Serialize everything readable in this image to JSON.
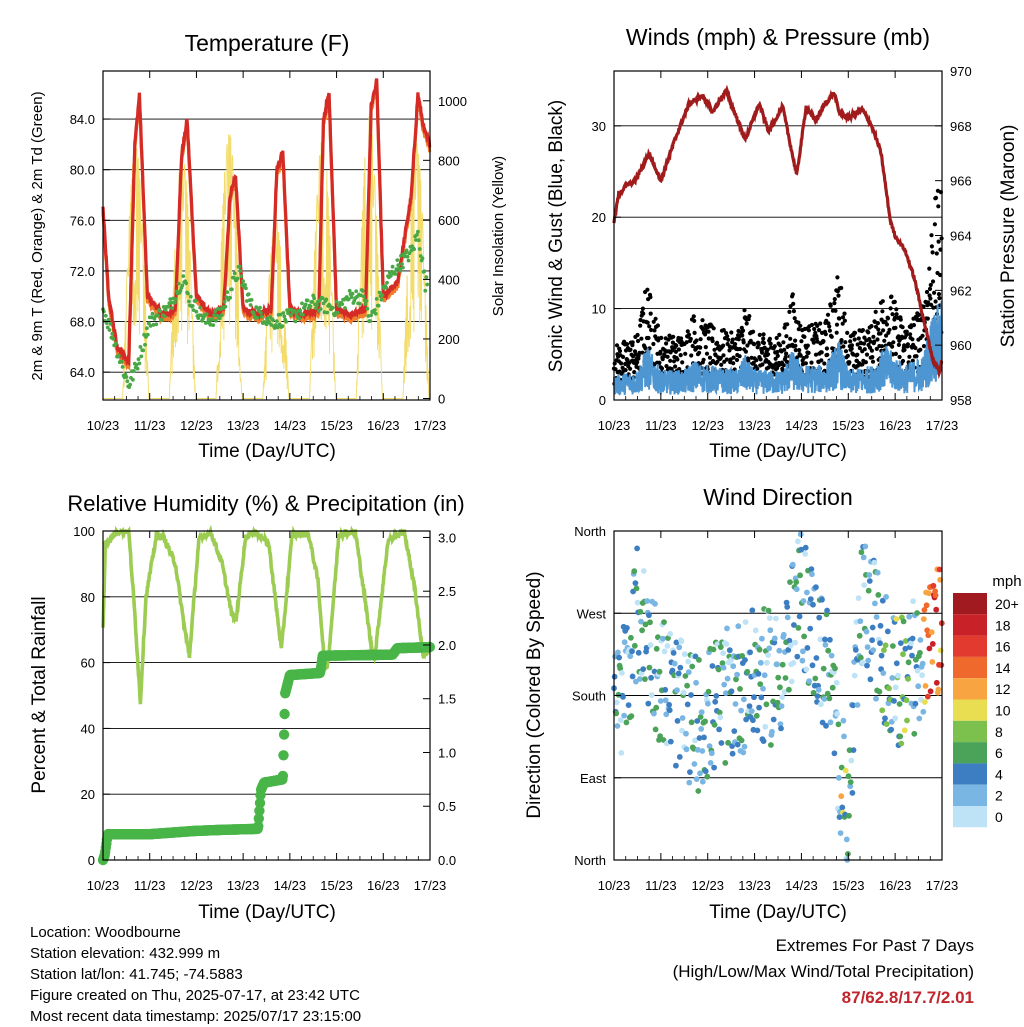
{
  "panels": {
    "temperature": {
      "title": "Temperature (F)",
      "ylabel_left": "2m & 9m T (Red, Orange) & 2m Td (Green)",
      "ylabel_right": "Solar Insolation (Yellow)",
      "xlabel": "Time (Day/UTC)"
    },
    "winds": {
      "title": "Winds (mph) & Pressure (mb)",
      "ylabel_left": "Sonic Wind & Gust (Blue, Black)",
      "ylabel_right": "Station Pressure (Maroon)",
      "xlabel": "Time (Day/UTC)"
    },
    "humidity": {
      "title": "Relative Humidity (%) & Precipitation (in)",
      "ylabel_left": "Percent & Total Rainfall",
      "xlabel": "Time (Day/UTC)"
    },
    "direction": {
      "title": "Wind Direction",
      "ylabel_left": "Direction (Colored By Speed)",
      "xlabel": "Time (Day/UTC)",
      "legend_title": "mph",
      "legend_labels": [
        "20+",
        "18",
        "16",
        "14",
        "12",
        "10",
        "8",
        "6",
        "4",
        "2",
        "0"
      ],
      "legend_colors": [
        "#a11a1f",
        "#c92128",
        "#e23a2e",
        "#f0692c",
        "#f8a541",
        "#e9de52",
        "#7cc04d",
        "#4ba35a",
        "#3d7ec2",
        "#7ab6e3",
        "#bfe3f6"
      ]
    }
  },
  "info": {
    "location": "Location: Woodbourne",
    "elevation": "Station elevation: 432.999 m",
    "latlon": "Station lat/lon: 41.745; -74.5883",
    "created": "Figure created on Thu, 2025-07-17, at 23:42 UTC",
    "recent": "Most recent data timestamp: 2025/07/17 23:15:00"
  },
  "extremes": {
    "line1": "Extremes For Past 7 Days",
    "line2": "(High/Low/Max Wind/Total Precipitation)",
    "values": "87/62.8/17.7/2.01"
  },
  "chart_data": [
    {
      "type": "line",
      "title": "Temperature (F)",
      "x_ticks": [
        "10/23",
        "11/23",
        "12/23",
        "13/23",
        "14/23",
        "15/23",
        "16/23",
        "17/23"
      ],
      "y_ticks": [
        "64.0",
        "68.0",
        "72.0",
        "76.0",
        "80.0",
        "84.0"
      ],
      "y2_ticks": [
        "0",
        "200",
        "400",
        "600",
        "800",
        "1000"
      ],
      "ylim": [
        61.8,
        87.8
      ],
      "y2lim": [
        -5,
        1100
      ],
      "series": [
        {
          "name": "2m T",
          "color": "#d42b27",
          "x": [
            0,
            0.12,
            0.3,
            0.55,
            0.68,
            0.78,
            0.95,
            1.3,
            1.55,
            1.68,
            1.8,
            2.0,
            2.3,
            2.58,
            2.72,
            2.84,
            3.0,
            3.3,
            3.6,
            3.72,
            3.85,
            4.0,
            4.3,
            4.62,
            4.72,
            4.84,
            5.0,
            5.3,
            5.62,
            5.74,
            5.86,
            6.0,
            6.3,
            6.6,
            6.74,
            6.88,
            7.0
          ],
          "y": [
            77,
            70,
            66,
            64.8,
            82,
            86,
            70,
            68.5,
            69,
            81,
            84,
            70,
            68.5,
            69,
            78,
            79.5,
            69,
            68.5,
            69,
            80,
            81.5,
            69,
            68.5,
            69,
            84,
            86,
            69,
            68.5,
            69,
            85,
            87,
            70,
            71,
            78,
            86,
            83,
            82
          ]
        },
        {
          "name": "2m Td",
          "color": "#49a845",
          "x": [
            0,
            0.2,
            0.45,
            0.55,
            0.72,
            1.0,
            1.4,
            1.72,
            1.82,
            2.2,
            2.5,
            2.9,
            3.2,
            3.6,
            3.7,
            4.1,
            4.5,
            5.0,
            5.3,
            5.6,
            5.7,
            6.2,
            6.6,
            6.75,
            6.9
          ],
          "y": [
            69,
            67,
            64,
            63,
            64.5,
            68,
            69,
            71.5,
            70,
            68,
            68.5,
            72,
            69,
            68,
            68,
            68.5,
            69.5,
            69,
            70,
            70,
            68,
            72,
            73.5,
            75,
            71
          ]
        }
      ]
    },
    {
      "type": "line",
      "title": "Winds (mph) & Pressure (mb)",
      "x_ticks": [
        "10/23",
        "11/23",
        "12/23",
        "13/23",
        "14/23",
        "15/23",
        "16/23",
        "17/23"
      ],
      "y_ticks": [
        "0",
        "10",
        "20",
        "30"
      ],
      "y2_ticks": [
        "958",
        "960",
        "962",
        "964",
        "966",
        "968",
        "970"
      ],
      "ylim": [
        0,
        36
      ],
      "y2lim": [
        958,
        970
      ],
      "series": [
        {
          "name": "Station Pressure",
          "color": "#a01b1b",
          "x": [
            0,
            0.1,
            0.25,
            0.45,
            0.75,
            1.0,
            1.3,
            1.6,
            1.9,
            2.1,
            2.4,
            2.5,
            2.8,
            3.1,
            3.3,
            3.6,
            3.8,
            3.9,
            4.1,
            4.3,
            4.5,
            4.7,
            4.8,
            5.0,
            5.3,
            5.5,
            5.7,
            5.9,
            6.0,
            6.2,
            6.4,
            6.6,
            6.8,
            6.95,
            7.0
          ],
          "y": [
            964.5,
            965.5,
            965.8,
            966,
            967,
            966,
            967.5,
            968.8,
            969.1,
            968.5,
            969.3,
            968.8,
            967.5,
            968.8,
            967.8,
            968.7,
            967,
            966.2,
            968.7,
            968.2,
            968.8,
            969.2,
            968.5,
            968.3,
            968.6,
            968,
            967,
            964.5,
            964,
            963.5,
            962.5,
            961,
            959.5,
            959,
            959.5
          ]
        }
      ]
    },
    {
      "type": "line",
      "title": "Relative Humidity (%) & Precipitation (in)",
      "x_ticks": [
        "10/23",
        "11/23",
        "12/23",
        "13/23",
        "14/23",
        "15/23",
        "16/23",
        "17/23"
      ],
      "y_ticks": [
        "0",
        "20",
        "40",
        "60",
        "80",
        "100"
      ],
      "y2_ticks": [
        "0.0",
        "0.5",
        "1.0",
        "1.5",
        "2.0",
        "2.5",
        "3.0"
      ],
      "ylim": [
        0,
        100
      ],
      "y2lim": [
        0,
        3.06
      ],
      "series": [
        {
          "name": "Relative Humidity",
          "color": "#9ccc52",
          "x": [
            0,
            0.05,
            0.3,
            0.55,
            0.68,
            0.8,
            0.92,
            1.15,
            1.3,
            1.55,
            1.75,
            1.85,
            2.05,
            2.3,
            2.55,
            2.75,
            2.85,
            3.05,
            3.25,
            3.55,
            3.75,
            3.82,
            4.05,
            4.4,
            4.6,
            4.75,
            4.82,
            5.05,
            5.4,
            5.6,
            5.75,
            5.82,
            6.1,
            6.45,
            6.68,
            6.85,
            7.0
          ],
          "y": [
            70,
            96,
            100,
            100,
            75,
            48,
            80,
            99,
            98,
            90,
            70,
            62,
            97,
            100,
            90,
            75,
            73,
            98,
            100,
            96,
            72,
            64,
            99,
            99,
            85,
            58,
            60,
            99,
            100,
            80,
            64,
            62,
            97,
            100,
            82,
            62,
            64
          ]
        },
        {
          "name": "Total Rainfall",
          "color": "#49b548",
          "x": [
            0,
            0.04,
            0.1,
            1.0,
            1.95,
            2.5,
            3.32,
            3.38,
            3.45,
            3.85,
            3.9,
            4.0,
            4.65,
            4.7,
            6.2,
            6.3,
            7.0
          ],
          "y": [
            0,
            0.05,
            0.24,
            0.24,
            0.27,
            0.28,
            0.29,
            0.65,
            0.72,
            0.75,
            1.55,
            1.72,
            1.74,
            1.9,
            1.91,
            1.97,
            1.98
          ]
        }
      ]
    },
    {
      "type": "scatter",
      "title": "Wind Direction",
      "x_ticks": [
        "10/23",
        "11/23",
        "12/23",
        "13/23",
        "14/23",
        "15/23",
        "16/23",
        "17/23"
      ],
      "y_ticks": [
        "North",
        "East",
        "South",
        "West",
        "North"
      ],
      "y_values_deg": [
        0,
        90,
        180,
        270,
        360
      ],
      "colorbar_unit": "mph",
      "colorbar_labels": [
        "20+",
        "18",
        "16",
        "14",
        "12",
        "10",
        "8",
        "6",
        "4",
        "2",
        "0"
      ]
    }
  ]
}
